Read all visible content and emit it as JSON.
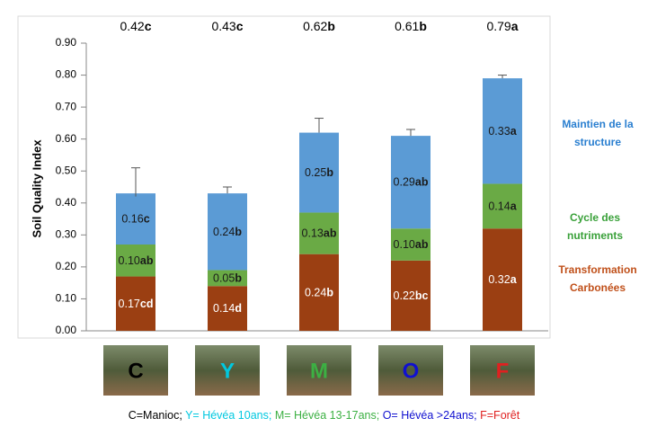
{
  "chart_data": {
    "type": "stacked-bar",
    "y_label": "Soil Quality Index",
    "categories": [
      "C",
      "Y",
      "M",
      "O",
      "F"
    ],
    "category_colors": [
      "#000000",
      "#00c8e0",
      "#3cb043",
      "#1010d0",
      "#e02020"
    ],
    "series": [
      {
        "name": "Transformation Carbonées",
        "color": "#9b3f12",
        "label_color": "#c0501a",
        "values": [
          0.17,
          0.14,
          0.24,
          0.22,
          0.32
        ],
        "value_labels": [
          "0.17cd",
          "0.14d",
          "0.24b",
          "0.22bc",
          "0.32a"
        ]
      },
      {
        "name": "Cycle des nutriments",
        "color": "#6aaa45",
        "label_color": "#3aa13a",
        "values": [
          0.1,
          0.05,
          0.13,
          0.1,
          0.14
        ],
        "value_labels": [
          "0.10ab",
          "0.05b",
          "0.13ab",
          "0.10ab",
          "0.14a"
        ]
      },
      {
        "name": "Maintien de la structure",
        "color": "#5b9bd5",
        "label_color": "#2a7fd0",
        "values": [
          0.16,
          0.24,
          0.25,
          0.29,
          0.33
        ],
        "value_labels": [
          "0.16c",
          "0.24b",
          "0.25b",
          "0.29ab",
          "0.33a"
        ]
      }
    ],
    "totals": [
      0.42,
      0.43,
      0.62,
      0.61,
      0.79
    ],
    "total_labels": [
      "0.42c",
      "0.43c",
      "0.62b",
      "0.61b",
      "0.79a"
    ],
    "errors": [
      0.09,
      0.02,
      0.045,
      0.02,
      0.01
    ],
    "ylim": [
      0,
      0.9
    ],
    "yticks": [
      {
        "value": 0,
        "label": "0.00"
      },
      {
        "value": 0.1,
        "label": "0.10"
      },
      {
        "value": 0.2,
        "label": "0.20"
      },
      {
        "value": 0.3,
        "label": "0.30"
      },
      {
        "value": 0.4,
        "label": "0.40"
      },
      {
        "value": 0.5,
        "label": "0.50"
      },
      {
        "value": 0.6,
        "label": "0.60"
      },
      {
        "value": 0.7,
        "label": "0.70"
      },
      {
        "value": 0.8,
        "label": "0.80"
      },
      {
        "value": 0.9,
        "label": "0.90"
      }
    ],
    "caption": [
      {
        "text": "C=Manioc;",
        "color": "#000000"
      },
      {
        "text": "Y= Hévéa 10ans;",
        "color": "#00c8e0"
      },
      {
        "text": "M= Hévéa 13-17ans;",
        "color": "#3cb043"
      },
      {
        "text": "O= Hévéa >24ans;",
        "color": "#1010d0"
      },
      {
        "text": "F=Forêt",
        "color": "#e02020"
      }
    ]
  }
}
